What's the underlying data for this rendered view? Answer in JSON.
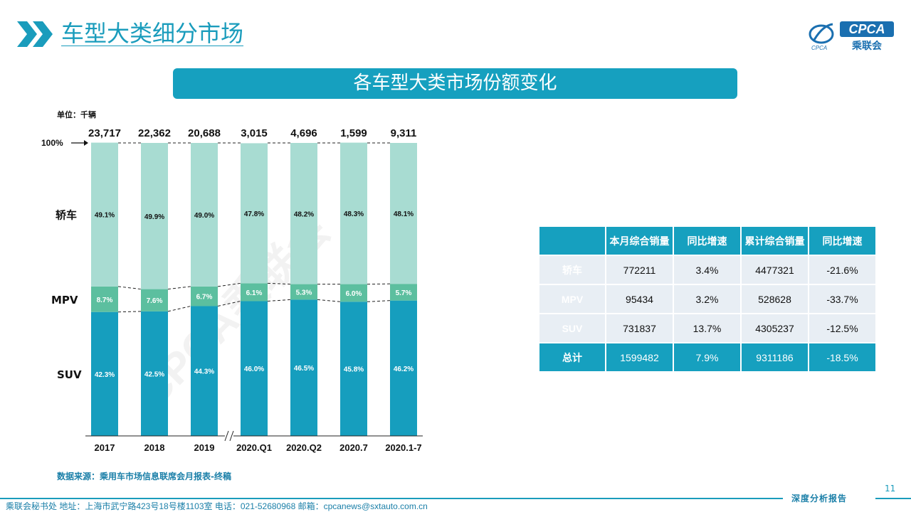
{
  "header": {
    "title": "车型大类细分市场"
  },
  "logo": {
    "text": "CPCA",
    "sub": "乘联会",
    "small": "CPCA"
  },
  "banner": {
    "title": "各车型大类市场份额变化"
  },
  "unit_label": "单位：千辆",
  "chart_data": {
    "type": "bar",
    "stacked": true,
    "normalized": true,
    "categories": [
      "2017",
      "2018",
      "2019",
      "2020.Q1",
      "2020.Q2",
      "2020.7",
      "2020.1-7"
    ],
    "totals": [
      "23,717",
      "22,362",
      "20,688",
      "3,015",
      "4,696",
      "1,599",
      "9,311"
    ],
    "series": [
      {
        "name": "SUV",
        "color": "#169ebe",
        "values": [
          42.3,
          42.5,
          44.3,
          46.0,
          46.5,
          45.8,
          46.2
        ],
        "labels": [
          "42.3%",
          "42.5%",
          "44.3%",
          "46.0%",
          "46.5%",
          "45.8%",
          "46.2%"
        ]
      },
      {
        "name": "MPV",
        "color": "#5cbf9f",
        "values": [
          8.7,
          7.6,
          6.7,
          6.1,
          5.3,
          6.0,
          5.7
        ],
        "labels": [
          "8.7%",
          "7.6%",
          "6.7%",
          "6.1%",
          "5.3%",
          "6.0%",
          "5.7%"
        ]
      },
      {
        "name": "轿车",
        "color": "#a8dcd2",
        "values": [
          49.1,
          49.9,
          49.0,
          47.8,
          48.2,
          48.3,
          48.1
        ],
        "labels": [
          "49.1%",
          "49.9%",
          "49.0%",
          "47.8%",
          "48.2%",
          "48.3%",
          "48.1%"
        ]
      }
    ],
    "ylim": [
      0,
      100
    ],
    "top_marker": "100%",
    "axis_break_after": "2019"
  },
  "table": {
    "headers": [
      "",
      "本月综合销量",
      "同比增速",
      "累计综合销量",
      "同比增速"
    ],
    "rows": [
      [
        "轿车",
        "772211",
        "3.4%",
        "4477321",
        "-21.6%"
      ],
      [
        "MPV",
        "95434",
        "3.2%",
        "528628",
        "-33.7%"
      ],
      [
        "SUV",
        "731837",
        "13.7%",
        "4305237",
        "-12.5%"
      ]
    ],
    "total": [
      "总计",
      "1599482",
      "7.9%",
      "9311186",
      "-18.5%"
    ]
  },
  "source": "数据来源：乘用车市场信息联席会月报表-终稿",
  "footer": "乘联会秘书处   地址：上海市武宁路423号18号楼1103室   电话：021-52680968   邮箱：cpcanews@sxtauto.com.cn",
  "report": "深度分析报告",
  "page_number": "11",
  "watermark": "CPCA乘联会"
}
